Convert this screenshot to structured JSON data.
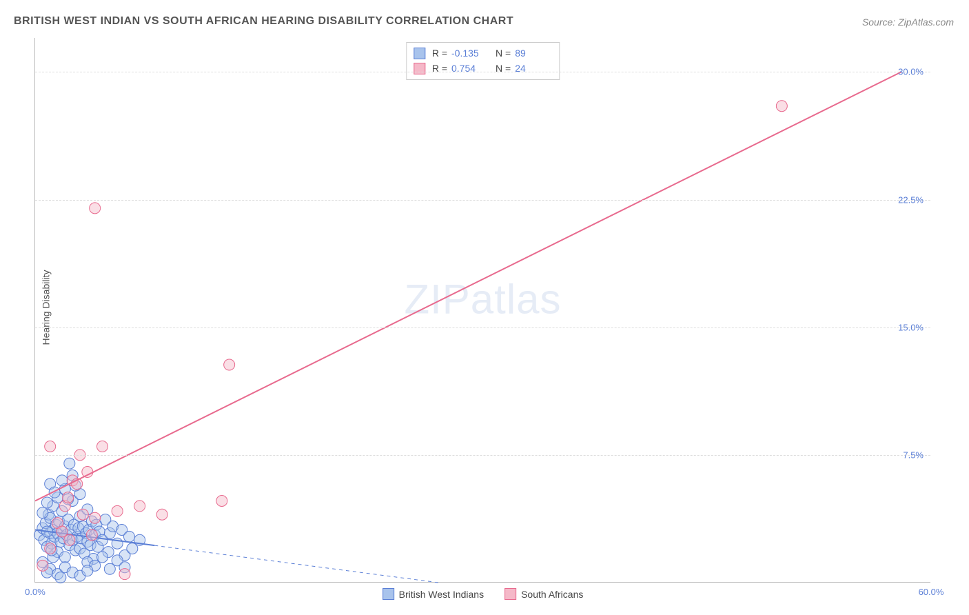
{
  "title": "BRITISH WEST INDIAN VS SOUTH AFRICAN HEARING DISABILITY CORRELATION CHART",
  "source": "Source: ZipAtlas.com",
  "ylabel": "Hearing Disability",
  "watermark_a": "ZIP",
  "watermark_b": "atlas",
  "chart": {
    "type": "scatter-correlation",
    "xlim": [
      0,
      60
    ],
    "ylim": [
      0,
      32
    ],
    "xticks": [
      {
        "v": 0,
        "label": "0.0%"
      },
      {
        "v": 60,
        "label": "60.0%"
      }
    ],
    "yticks": [
      {
        "v": 7.5,
        "label": "7.5%"
      },
      {
        "v": 15.0,
        "label": "15.0%"
      },
      {
        "v": 22.5,
        "label": "22.5%"
      },
      {
        "v": 30.0,
        "label": "30.0%"
      }
    ],
    "background_color": "#ffffff",
    "grid_color": "#dddddd",
    "marker_radius": 8,
    "marker_opacity": 0.45,
    "series": [
      {
        "name": "British West Indians",
        "fill": "#a8c3ec",
        "stroke": "#5b7fd6",
        "r_value": "-0.135",
        "n_value": "89",
        "trend": {
          "x1": 0,
          "y1": 3.1,
          "x2": 27,
          "y2": 0.0,
          "dash_after_x": 8,
          "color": "#5b7fd6",
          "width": 2
        },
        "points": [
          [
            0.3,
            2.8
          ],
          [
            0.5,
            3.2
          ],
          [
            0.6,
            2.5
          ],
          [
            0.7,
            3.5
          ],
          [
            0.8,
            2.1
          ],
          [
            0.9,
            4.0
          ],
          [
            1.0,
            2.9
          ],
          [
            1.0,
            3.8
          ],
          [
            1.1,
            2.3
          ],
          [
            1.2,
            3.1
          ],
          [
            1.2,
            4.5
          ],
          [
            1.3,
            2.7
          ],
          [
            1.4,
            3.4
          ],
          [
            1.5,
            1.8
          ],
          [
            1.5,
            2.9
          ],
          [
            1.6,
            3.6
          ],
          [
            1.7,
            2.4
          ],
          [
            1.8,
            3.0
          ],
          [
            1.8,
            4.2
          ],
          [
            1.9,
            2.6
          ],
          [
            2.0,
            3.3
          ],
          [
            2.0,
            1.5
          ],
          [
            2.1,
            2.8
          ],
          [
            2.2,
            3.7
          ],
          [
            2.3,
            2.2
          ],
          [
            2.4,
            3.1
          ],
          [
            2.5,
            4.8
          ],
          [
            2.5,
            2.5
          ],
          [
            2.6,
            3.4
          ],
          [
            2.7,
            1.9
          ],
          [
            2.8,
            2.7
          ],
          [
            2.9,
            3.2
          ],
          [
            3.0,
            2.0
          ],
          [
            3.0,
            3.9
          ],
          [
            3.1,
            2.6
          ],
          [
            3.2,
            3.3
          ],
          [
            3.3,
            1.7
          ],
          [
            3.4,
            2.9
          ],
          [
            3.5,
            4.3
          ],
          [
            3.5,
            2.4
          ],
          [
            3.6,
            3.1
          ],
          [
            3.7,
            2.2
          ],
          [
            3.8,
            3.6
          ],
          [
            3.9,
            1.4
          ],
          [
            4.0,
            2.8
          ],
          [
            4.1,
            3.4
          ],
          [
            4.2,
            2.1
          ],
          [
            4.3,
            3.0
          ],
          [
            4.5,
            2.5
          ],
          [
            4.7,
            3.7
          ],
          [
            4.9,
            1.8
          ],
          [
            5.0,
            2.9
          ],
          [
            5.2,
            3.3
          ],
          [
            5.5,
            2.3
          ],
          [
            5.8,
            3.1
          ],
          [
            6.0,
            1.6
          ],
          [
            6.3,
            2.7
          ],
          [
            2.0,
            5.5
          ],
          [
            2.5,
            6.3
          ],
          [
            1.5,
            5.0
          ],
          [
            1.0,
            5.8
          ],
          [
            3.0,
            5.2
          ],
          [
            1.8,
            6.0
          ],
          [
            2.2,
            4.9
          ],
          [
            0.8,
            4.7
          ],
          [
            1.3,
            5.3
          ],
          [
            2.7,
            5.7
          ],
          [
            3.5,
            1.2
          ],
          [
            4.0,
            1.0
          ],
          [
            4.5,
            1.5
          ],
          [
            5.0,
            0.8
          ],
          [
            5.5,
            1.3
          ],
          [
            6.0,
            0.9
          ],
          [
            6.5,
            2.0
          ],
          [
            7.0,
            2.5
          ],
          [
            1.0,
            0.8
          ],
          [
            1.5,
            0.5
          ],
          [
            2.0,
            0.9
          ],
          [
            2.5,
            0.6
          ],
          [
            3.0,
            0.4
          ],
          [
            3.5,
            0.7
          ],
          [
            0.5,
            1.2
          ],
          [
            0.8,
            0.6
          ],
          [
            1.2,
            1.5
          ],
          [
            1.7,
            0.3
          ],
          [
            2.3,
            7.0
          ],
          [
            0.5,
            4.1
          ],
          [
            0.8,
            3.0
          ],
          [
            1.1,
            1.9
          ]
        ]
      },
      {
        "name": "South Africans",
        "fill": "#f5b8c8",
        "stroke": "#e86a8e",
        "r_value": "0.754",
        "n_value": "24",
        "trend": {
          "x1": 0,
          "y1": 4.8,
          "x2": 58,
          "y2": 30.0,
          "color": "#e86a8e",
          "width": 2
        },
        "points": [
          [
            0.5,
            1.0
          ],
          [
            1.0,
            2.0
          ],
          [
            1.5,
            3.5
          ],
          [
            2.0,
            4.5
          ],
          [
            2.2,
            5.0
          ],
          [
            2.5,
            6.0
          ],
          [
            2.8,
            5.8
          ],
          [
            3.0,
            7.5
          ],
          [
            3.2,
            4.0
          ],
          [
            3.5,
            6.5
          ],
          [
            4.0,
            3.8
          ],
          [
            4.5,
            8.0
          ],
          [
            5.5,
            4.2
          ],
          [
            6.0,
            0.5
          ],
          [
            7.0,
            4.5
          ],
          [
            8.5,
            4.0
          ],
          [
            4.0,
            22.0
          ],
          [
            12.5,
            4.8
          ],
          [
            13.0,
            12.8
          ],
          [
            50.0,
            28.0
          ],
          [
            1.0,
            8.0
          ],
          [
            1.8,
            3.0
          ],
          [
            2.3,
            2.5
          ],
          [
            3.8,
            2.8
          ]
        ]
      }
    ]
  },
  "legend_top_labels": {
    "R": "R =",
    "N": "N ="
  },
  "legend_bottom": [
    {
      "name": "British West Indians",
      "fill": "#a8c3ec",
      "stroke": "#5b7fd6"
    },
    {
      "name": "South Africans",
      "fill": "#f5b8c8",
      "stroke": "#e86a8e"
    }
  ]
}
